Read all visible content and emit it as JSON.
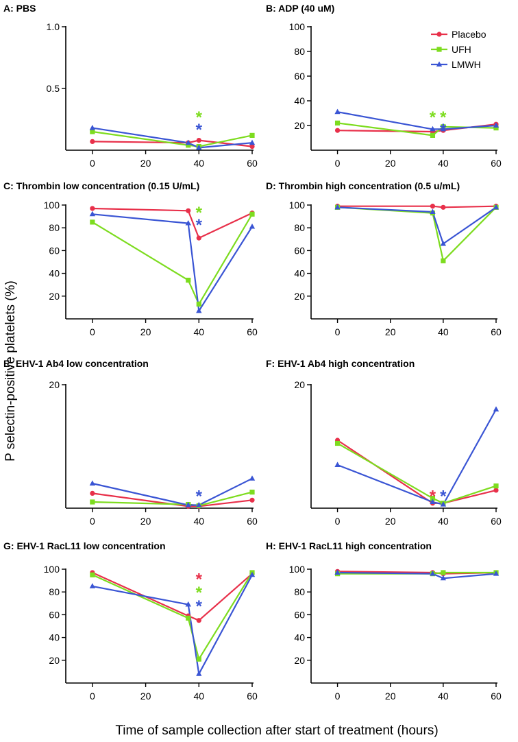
{
  "figure": {
    "ylabel": "P selectin-positive platelets (%)",
    "xlabel": "Time of sample collection after start of treatment (hours)",
    "legend": [
      {
        "name": "Placebo",
        "color": "#e8304a",
        "marker": "circle"
      },
      {
        "name": "UFH",
        "color": "#7ddc1f",
        "marker": "square"
      },
      {
        "name": "LMWH",
        "color": "#3a55d4",
        "marker": "triangle"
      }
    ]
  },
  "chart_data": [
    {
      "type": "line",
      "title": "A: PBS",
      "x": [
        0,
        36,
        40,
        60
      ],
      "xlim": [
        -10,
        60
      ],
      "xticks": [
        0,
        20,
        40,
        60
      ],
      "ylim": [
        0,
        1.0
      ],
      "yticks": [
        0.5,
        1.0
      ],
      "ytick_labels": [
        "0.5",
        "1.0"
      ],
      "series": [
        {
          "name": "Placebo",
          "values": [
            0.07,
            0.06,
            0.08,
            0.03
          ]
        },
        {
          "name": "UFH",
          "values": [
            0.15,
            0.04,
            0.03,
            0.12
          ]
        },
        {
          "name": "LMWH",
          "values": [
            0.18,
            0.06,
            0.02,
            0.06
          ]
        }
      ],
      "stars": [
        {
          "x": 40,
          "y": 0.3,
          "color": "#7ddc1f",
          "text": "*"
        },
        {
          "x": 40,
          "y": 0.2,
          "color": "#3a55d4",
          "text": "*"
        }
      ]
    },
    {
      "type": "line",
      "title": "B: ADP (40 uM)",
      "x": [
        0,
        36,
        40,
        60
      ],
      "xlim": [
        -10,
        60
      ],
      "xticks": [
        0,
        20,
        40,
        60
      ],
      "ylim": [
        0,
        100
      ],
      "yticks": [
        20,
        40,
        60,
        80,
        100
      ],
      "series": [
        {
          "name": "Placebo",
          "values": [
            16,
            15,
            16,
            21
          ]
        },
        {
          "name": "UFH",
          "values": [
            22,
            12,
            19,
            18
          ]
        },
        {
          "name": "LMWH",
          "values": [
            31,
            17,
            17,
            20
          ]
        }
      ],
      "stars": [
        {
          "x": 36,
          "y": 30,
          "color": "#7ddc1f",
          "text": "*"
        },
        {
          "x": 40,
          "y": 30,
          "color": "#7ddc1f",
          "text": "*"
        },
        {
          "x": 40,
          "y": 20,
          "color": "#3a55d4",
          "text": "*"
        }
      ],
      "show_legend": true
    },
    {
      "type": "line",
      "title": "C: Thrombin low concentration (0.15 U/mL)",
      "x": [
        0,
        36,
        40,
        60
      ],
      "xlim": [
        -10,
        60
      ],
      "xticks": [
        0,
        20,
        40,
        60
      ],
      "ylim": [
        0,
        100
      ],
      "yticks": [
        20,
        40,
        60,
        80,
        100
      ],
      "series": [
        {
          "name": "Placebo",
          "values": [
            97,
            95,
            71,
            93
          ]
        },
        {
          "name": "UFH",
          "values": [
            85,
            34,
            13,
            92
          ]
        },
        {
          "name": "LMWH",
          "values": [
            92,
            84,
            7,
            81
          ]
        }
      ],
      "stars": [
        {
          "x": 40,
          "y": 97,
          "color": "#7ddc1f",
          "text": "*"
        },
        {
          "x": 40,
          "y": 86,
          "color": "#3a55d4",
          "text": "*"
        }
      ]
    },
    {
      "type": "line",
      "title": "D: Thrombin high concentration (0.5 u/mL)",
      "x": [
        0,
        36,
        40,
        60
      ],
      "xlim": [
        -10,
        60
      ],
      "xticks": [
        0,
        20,
        40,
        60
      ],
      "ylim": [
        0,
        100
      ],
      "yticks": [
        20,
        40,
        60,
        80,
        100
      ],
      "series": [
        {
          "name": "Placebo",
          "values": [
            99,
            99,
            98,
            99
          ]
        },
        {
          "name": "UFH",
          "values": [
            98,
            93,
            51,
            98
          ]
        },
        {
          "name": "LMWH",
          "values": [
            98,
            94,
            66,
            98
          ]
        }
      ],
      "stars": []
    },
    {
      "type": "line",
      "title": "E: EHV-1 Ab4 low concentration",
      "x": [
        0,
        36,
        40,
        60
      ],
      "xlim": [
        -10,
        60
      ],
      "xticks": [
        0,
        20,
        40,
        60
      ],
      "ylim": [
        0,
        20
      ],
      "yticks": [
        20
      ],
      "ytick_labels": [
        "20"
      ],
      "series": [
        {
          "name": "Placebo",
          "values": [
            2.4,
            0.3,
            0.3,
            1.3
          ]
        },
        {
          "name": "UFH",
          "values": [
            1.0,
            0.6,
            0.4,
            2.6
          ]
        },
        {
          "name": "LMWH",
          "values": [
            4.0,
            0.5,
            0.5,
            4.8
          ]
        }
      ],
      "stars": [
        {
          "x": 40,
          "y": 2.6,
          "color": "#3a55d4",
          "text": "*"
        }
      ]
    },
    {
      "type": "line",
      "title": "F: EHV-1 Ab4 high concentration",
      "x": [
        0,
        36,
        40,
        60
      ],
      "xlim": [
        -10,
        60
      ],
      "xticks": [
        0,
        20,
        40,
        60
      ],
      "ylim": [
        0,
        20
      ],
      "yticks": [
        20
      ],
      "ytick_labels": [
        "20"
      ],
      "series": [
        {
          "name": "Placebo",
          "values": [
            11.0,
            0.8,
            0.8,
            2.9
          ]
        },
        {
          "name": "UFH",
          "values": [
            10.5,
            1.6,
            0.8,
            3.6
          ]
        },
        {
          "name": "LMWH",
          "values": [
            7.0,
            1.0,
            0.6,
            16.0
          ]
        }
      ],
      "stars": [
        {
          "x": 36,
          "y": 2.6,
          "color": "#e8304a",
          "text": "*"
        },
        {
          "x": 40,
          "y": 2.6,
          "color": "#3a55d4",
          "text": "*"
        }
      ]
    },
    {
      "type": "line",
      "title": "G: EHV-1 RacL11 low concentration",
      "x": [
        0,
        36,
        40,
        60
      ],
      "xlim": [
        -10,
        60
      ],
      "xticks": [
        0,
        20,
        40,
        60
      ],
      "ylim": [
        0,
        100
      ],
      "yticks": [
        20,
        40,
        60,
        80,
        100
      ],
      "series": [
        {
          "name": "Placebo",
          "values": [
            97,
            59,
            55,
            96
          ]
        },
        {
          "name": "UFH",
          "values": [
            95,
            57,
            21,
            97
          ]
        },
        {
          "name": "LMWH",
          "values": [
            85,
            69,
            8,
            95
          ]
        }
      ],
      "stars": [
        {
          "x": 40,
          "y": 95,
          "color": "#e8304a",
          "text": "*"
        },
        {
          "x": 40,
          "y": 83,
          "color": "#7ddc1f",
          "text": "*"
        },
        {
          "x": 40,
          "y": 71,
          "color": "#3a55d4",
          "text": "*"
        }
      ]
    },
    {
      "type": "line",
      "title": "H: EHV-1 RacL11 high concentration",
      "x": [
        0,
        36,
        40,
        60
      ],
      "xlim": [
        -10,
        60
      ],
      "xticks": [
        0,
        20,
        40,
        60
      ],
      "ylim": [
        0,
        100
      ],
      "yticks": [
        20,
        40,
        60,
        80,
        100
      ],
      "series": [
        {
          "name": "Placebo",
          "values": [
            98,
            97,
            96,
            97
          ]
        },
        {
          "name": "UFH",
          "values": [
            96,
            96,
            97,
            97
          ]
        },
        {
          "name": "LMWH",
          "values": [
            97,
            96,
            92,
            96
          ]
        }
      ],
      "stars": []
    }
  ]
}
